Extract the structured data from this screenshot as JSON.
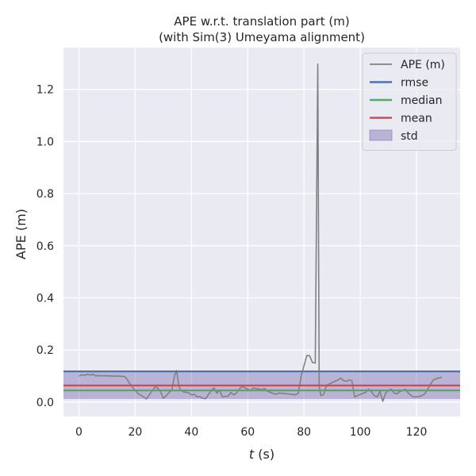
{
  "chart_data": {
    "type": "line",
    "title_line1": "APE w.r.t. translation part (m)",
    "title_line2": "(with Sim(3) Umeyama alignment)",
    "xlabel_italic": "t",
    "xlabel_rest": " (s)",
    "ylabel": "APE (m)",
    "xlim": [
      -5.5,
      135.5
    ],
    "ylim": [
      -0.055,
      1.36
    ],
    "xticks": [
      0,
      20,
      40,
      60,
      80,
      100,
      120
    ],
    "xtick_labels": [
      "0",
      "20",
      "40",
      "60",
      "80",
      "100",
      "120"
    ],
    "yticks": [
      0.0,
      0.2,
      0.4,
      0.6,
      0.8,
      1.0,
      1.2
    ],
    "ytick_labels": [
      "0.0",
      "0.2",
      "0.4",
      "0.6",
      "0.8",
      "1.0",
      "1.2"
    ],
    "grid": true,
    "legend_position": "top-right",
    "stats": {
      "rmse": 0.118,
      "median": 0.045,
      "mean": 0.064,
      "std_low": 0.012,
      "std_high": 0.116
    },
    "legend": [
      {
        "key": "ape",
        "label": "APE (m)",
        "kind": "line",
        "color": "#808080"
      },
      {
        "key": "rmse",
        "label": "rmse",
        "kind": "line",
        "color": "#4c72b0"
      },
      {
        "key": "median",
        "label": "median",
        "kind": "line",
        "color": "#55a868"
      },
      {
        "key": "mean",
        "label": "mean",
        "kind": "line",
        "color": "#c44e52"
      },
      {
        "key": "std",
        "label": "std",
        "kind": "patch",
        "color": "#8172b2"
      }
    ],
    "colors": {
      "background": "#eaeaf2",
      "grid": "#ffffff",
      "ape": "#808080",
      "rmse": "#4c72b0",
      "median": "#55a868",
      "mean": "#c44e52",
      "std": "#8172b2"
    },
    "series": [
      {
        "name": "APE (m)",
        "x": [
          0,
          1,
          2,
          3,
          4,
          5,
          6,
          7,
          8,
          10,
          12,
          14,
          16,
          17,
          18,
          19,
          20,
          21,
          22,
          23,
          24,
          25,
          26,
          27,
          28,
          29,
          30,
          31,
          32,
          33,
          34,
          34.7,
          35.5,
          36,
          37,
          38,
          39,
          40,
          41,
          42,
          43,
          44,
          45,
          46,
          47,
          48,
          49,
          50,
          51,
          52,
          53,
          54,
          55,
          56,
          57,
          58,
          59,
          60,
          61,
          62,
          63,
          64,
          65,
          66,
          67,
          68,
          69,
          70,
          71,
          72,
          73,
          74,
          75,
          76,
          77,
          78,
          79,
          80,
          81,
          82,
          83,
          84,
          84.9,
          85.4,
          86,
          87,
          88,
          89,
          90,
          91,
          92,
          93,
          94,
          95,
          96,
          97,
          98,
          99,
          100,
          101,
          102,
          103,
          104,
          105,
          106,
          107,
          108,
          109,
          110,
          111,
          112,
          113,
          114,
          115,
          116,
          117,
          118,
          119,
          120,
          121,
          122,
          123,
          124,
          125,
          126,
          127,
          128,
          129
        ],
        "values": [
          0.1,
          0.105,
          0.103,
          0.107,
          0.104,
          0.106,
          0.101,
          0.102,
          0.101,
          0.101,
          0.1,
          0.1,
          0.099,
          0.09,
          0.072,
          0.058,
          0.045,
          0.033,
          0.026,
          0.02,
          0.012,
          0.028,
          0.043,
          0.058,
          0.055,
          0.04,
          0.015,
          0.024,
          0.037,
          0.045,
          0.103,
          0.121,
          0.065,
          0.048,
          0.04,
          0.038,
          0.036,
          0.028,
          0.03,
          0.02,
          0.022,
          0.015,
          0.013,
          0.028,
          0.045,
          0.055,
          0.035,
          0.045,
          0.02,
          0.022,
          0.023,
          0.037,
          0.028,
          0.035,
          0.05,
          0.06,
          0.055,
          0.05,
          0.045,
          0.055,
          0.052,
          0.05,
          0.048,
          0.052,
          0.042,
          0.038,
          0.034,
          0.03,
          0.035,
          0.034,
          0.033,
          0.032,
          0.031,
          0.03,
          0.028,
          0.035,
          0.1,
          0.14,
          0.179,
          0.178,
          0.152,
          0.15,
          1.297,
          0.06,
          0.025,
          0.03,
          0.065,
          0.07,
          0.075,
          0.08,
          0.085,
          0.092,
          0.083,
          0.08,
          0.085,
          0.083,
          0.02,
          0.025,
          0.03,
          0.034,
          0.038,
          0.05,
          0.04,
          0.025,
          0.02,
          0.042,
          0.003,
          0.033,
          0.045,
          0.05,
          0.035,
          0.032,
          0.04,
          0.045,
          0.05,
          0.036,
          0.026,
          0.02,
          0.02,
          0.022,
          0.025,
          0.033,
          0.05,
          0.07,
          0.085,
          0.09,
          0.093,
          0.095
        ]
      }
    ]
  }
}
